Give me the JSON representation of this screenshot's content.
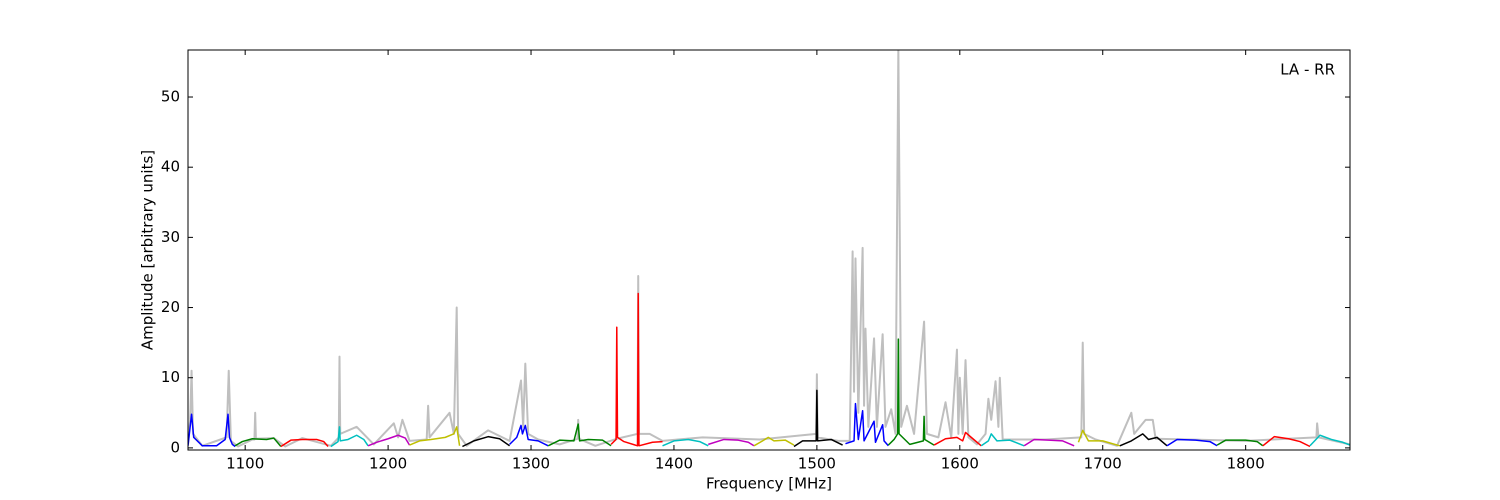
{
  "chart_data": {
    "type": "line",
    "xlabel": "Frequency [MHz]",
    "ylabel": "Amplitude [arbitrary units]",
    "annotation": "LA - RR",
    "xlim": [
      1060,
      1873
    ],
    "ylim": [
      -0.3,
      56.7
    ],
    "xticks": [
      1100,
      1200,
      1300,
      1400,
      1500,
      1600,
      1700,
      1800
    ],
    "yticks": [
      0,
      10,
      20,
      30,
      40,
      50
    ],
    "series": [
      {
        "color": "#bfbfbf",
        "x": [
          1060,
          1061.5,
          1062.5,
          1063.5,
          1070,
          1087,
          1088.5,
          1090,
          1095,
          1105,
          1106.5,
          1107,
          1107.5,
          1120,
          1128,
          1140,
          1160,
          1165.5,
          1166,
          1166.5,
          1178,
          1190,
          1204,
          1207,
          1210,
          1215,
          1227,
          1228,
          1229,
          1243,
          1246,
          1248,
          1249,
          1255,
          1270,
          1285,
          1293,
          1294.5,
          1296,
          1298,
          1305,
          1320,
          1332.5,
          1333,
          1333.5,
          1345,
          1360,
          1374.5,
          1375,
          1375.5,
          1383,
          1392,
          1420,
          1460,
          1499.5,
          1500,
          1500.5,
          1515,
          1523,
          1525,
          1526,
          1527,
          1529,
          1532,
          1533,
          1534,
          1536,
          1540,
          1542,
          1546,
          1548,
          1552,
          1555,
          1557,
          1559,
          1563,
          1568,
          1575,
          1577,
          1585,
          1590,
          1594,
          1598,
          1599,
          1600,
          1602,
          1604,
          1606,
          1612,
          1618,
          1620,
          1622,
          1625,
          1627,
          1628,
          1630,
          1660,
          1685,
          1686,
          1687,
          1695,
          1710,
          1720,
          1722,
          1730,
          1735,
          1737,
          1760,
          1800,
          1849.5,
          1850,
          1851,
          1873
        ],
        "values": [
          0.5,
          4,
          11,
          2,
          0.3,
          1.5,
          11,
          1,
          0.2,
          1.2,
          1.2,
          5,
          1.3,
          1.4,
          0.2,
          1.4,
          0.3,
          1.5,
          13,
          2,
          3,
          0.5,
          3.5,
          1.5,
          4,
          1,
          1.2,
          6,
          1.5,
          5,
          2,
          20,
          2,
          0.3,
          2.5,
          1,
          9.6,
          3,
          12,
          2,
          1.2,
          0.5,
          1.3,
          4,
          1.3,
          0.3,
          1.3,
          2,
          24.5,
          2,
          2,
          1,
          1.5,
          1.2,
          2,
          10.5,
          1.5,
          1,
          1,
          28,
          8,
          27,
          5,
          28.5,
          6,
          17,
          3,
          15.6,
          3,
          16.2,
          3,
          5.5,
          2,
          57,
          3,
          6,
          2,
          18,
          2,
          1.5,
          6.5,
          1.5,
          14,
          2,
          10,
          2,
          12.5,
          1.5,
          0.5,
          2,
          7,
          4,
          9.5,
          3,
          10,
          1.2,
          1.2,
          1.5,
          15,
          2,
          1.2,
          0.3,
          5,
          2,
          4,
          4,
          1.3,
          1.2,
          1,
          1.5,
          3.5,
          1.5,
          0.5
        ]
      },
      {
        "color": "#0000ff",
        "x": [
          1060,
          1061.5,
          1062.5,
          1064,
          1070,
          1080,
          1086,
          1088,
          1089,
          1091,
          1093
        ],
        "values": [
          0.3,
          3,
          4.8,
          1.5,
          0.3,
          0.3,
          1.2,
          4.8,
          1.5,
          0.5,
          0.2
        ]
      },
      {
        "color": "#008000",
        "x": [
          1093,
          1098,
          1105,
          1115,
          1120,
          1125
        ],
        "values": [
          0.3,
          0.9,
          1.3,
          1.2,
          1.4,
          0.2
        ]
      },
      {
        "color": "#ff0000",
        "x": [
          1125,
          1132,
          1140,
          1150,
          1155,
          1158
        ],
        "values": [
          0.2,
          1.1,
          1.2,
          1.2,
          0.9,
          0.2
        ]
      },
      {
        "color": "#00bfbf",
        "x": [
          1160,
          1165,
          1166,
          1166.5,
          1172,
          1178,
          1183,
          1186
        ],
        "values": [
          0.2,
          0.9,
          3,
          1,
          1.2,
          1.8,
          1.2,
          0.3
        ]
      },
      {
        "color": "#bf00bf",
        "x": [
          1186,
          1192,
          1200,
          1207,
          1212,
          1215
        ],
        "values": [
          0.3,
          0.8,
          1.3,
          1.8,
          1.4,
          0.4
        ]
      },
      {
        "color": "#bfbf00",
        "x": [
          1215,
          1222,
          1230,
          1240,
          1246,
          1248,
          1250
        ],
        "values": [
          0.4,
          1.0,
          1.2,
          1.5,
          2,
          3,
          0.3
        ]
      },
      {
        "color": "#000000",
        "x": [
          1252,
          1260,
          1270,
          1278,
          1285
        ],
        "values": [
          0.2,
          1.0,
          1.6,
          1.3,
          0.3
        ]
      },
      {
        "color": "#0000ff",
        "x": [
          1285,
          1290,
          1293,
          1294,
          1296,
          1298,
          1305,
          1312
        ],
        "values": [
          0.5,
          1.5,
          3.2,
          2,
          3.2,
          1.2,
          1.0,
          0.3
        ]
      },
      {
        "color": "#008000",
        "x": [
          1312,
          1320,
          1330,
          1333,
          1334,
          1340,
          1350,
          1356
        ],
        "values": [
          0.3,
          1.1,
          1.0,
          3.4,
          1.0,
          1.2,
          1.1,
          0.3
        ]
      },
      {
        "color": "#ff0000",
        "x": [
          1356,
          1359.5,
          1360,
          1360.5,
          1365,
          1374.5,
          1375,
          1375.5,
          1385,
          1392
        ],
        "values": [
          0.5,
          1.2,
          17.2,
          1.5,
          0.9,
          0.3,
          22,
          0.3,
          0.8,
          0.9
        ]
      },
      {
        "color": "#00bfbf",
        "x": [
          1392,
          1400,
          1410,
          1418,
          1424
        ],
        "values": [
          0.3,
          1.0,
          1.2,
          0.9,
          0.3
        ]
      },
      {
        "color": "#bf00bf",
        "x": [
          1424,
          1435,
          1445,
          1452,
          1456
        ],
        "values": [
          0.5,
          1.2,
          1.1,
          0.8,
          0.3
        ]
      },
      {
        "color": "#bfbf00",
        "x": [
          1456,
          1462,
          1466,
          1470,
          1478,
          1484
        ],
        "values": [
          0.3,
          1.0,
          1.5,
          1.0,
          1.1,
          0.4
        ]
      },
      {
        "color": "#000000",
        "x": [
          1484,
          1490,
          1499.5,
          1500,
          1500.5,
          1510,
          1518
        ],
        "values": [
          0.2,
          1.0,
          1.0,
          8.2,
          1.0,
          1.2,
          0.4
        ]
      },
      {
        "color": "#0000ff",
        "x": [
          1520,
          1526,
          1527,
          1529,
          1532,
          1533,
          1540,
          1541,
          1546,
          1547,
          1550
        ],
        "values": [
          0.6,
          1.0,
          6.3,
          1.2,
          5.3,
          1.0,
          3.8,
          0.8,
          3.3,
          1.0,
          0.3
        ]
      },
      {
        "color": "#008000",
        "x": [
          1550,
          1554,
          1556.5,
          1557,
          1557.5,
          1565,
          1574.5,
          1575,
          1575.5,
          1582
        ],
        "values": [
          0.4,
          1.2,
          2,
          15.5,
          2,
          0.5,
          1.0,
          4.5,
          1.2,
          0.4
        ]
      },
      {
        "color": "#ff0000",
        "x": [
          1582,
          1590,
          1598,
          1602,
          1604,
          1608,
          1615
        ],
        "values": [
          0.4,
          1.3,
          1.5,
          1.0,
          2.2,
          1.5,
          0.3
        ]
      },
      {
        "color": "#00bfbf",
        "x": [
          1615,
          1620,
          1622,
          1626,
          1635,
          1645
        ],
        "values": [
          0.3,
          1.0,
          2.0,
          1.0,
          1.1,
          0.3
        ]
      },
      {
        "color": "#bf00bf",
        "x": [
          1645,
          1652,
          1662,
          1672,
          1680
        ],
        "values": [
          0.3,
          1.2,
          1.1,
          1.0,
          0.3
        ]
      },
      {
        "color": "#bfbf00",
        "x": [
          1683,
          1686,
          1690,
          1700,
          1712
        ],
        "values": [
          0.8,
          2.5,
          1.0,
          1.0,
          0.3
        ]
      },
      {
        "color": "#000000",
        "x": [
          1712,
          1720,
          1728,
          1732,
          1738,
          1745
        ],
        "values": [
          0.3,
          1.0,
          2.0,
          1.2,
          1.5,
          0.3
        ]
      },
      {
        "color": "#0000ff",
        "x": [
          1745,
          1752,
          1765,
          1775,
          1780
        ],
        "values": [
          0.3,
          1.2,
          1.1,
          0.9,
          0.3
        ]
      },
      {
        "color": "#008000",
        "x": [
          1780,
          1786,
          1800,
          1808,
          1812
        ],
        "values": [
          0.4,
          1.1,
          1.1,
          0.9,
          0.3
        ]
      },
      {
        "color": "#ff0000",
        "x": [
          1812,
          1820,
          1830,
          1838,
          1845
        ],
        "values": [
          0.3,
          1.6,
          1.3,
          0.9,
          0.2
        ]
      },
      {
        "color": "#00bfbf",
        "x": [
          1845,
          1852,
          1860,
          1868,
          1873
        ],
        "values": [
          0.3,
          1.8,
          1.2,
          0.8,
          0.4
        ]
      }
    ]
  }
}
